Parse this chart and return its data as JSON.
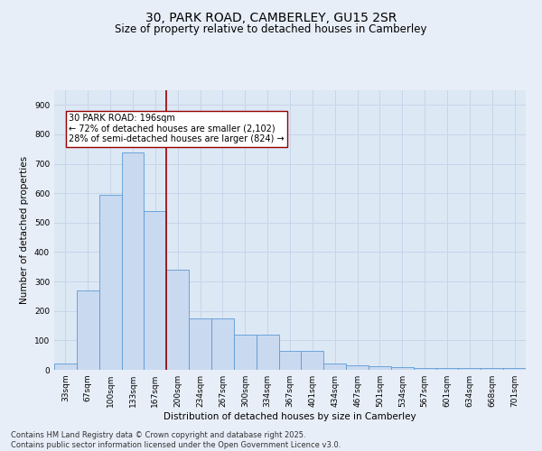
{
  "title": "30, PARK ROAD, CAMBERLEY, GU15 2SR",
  "subtitle": "Size of property relative to detached houses in Camberley",
  "xlabel": "Distribution of detached houses by size in Camberley",
  "ylabel": "Number of detached properties",
  "categories": [
    "33sqm",
    "67sqm",
    "100sqm",
    "133sqm",
    "167sqm",
    "200sqm",
    "234sqm",
    "267sqm",
    "300sqm",
    "334sqm",
    "367sqm",
    "401sqm",
    "434sqm",
    "467sqm",
    "501sqm",
    "534sqm",
    "567sqm",
    "601sqm",
    "634sqm",
    "668sqm",
    "701sqm"
  ],
  "values": [
    20,
    270,
    595,
    740,
    540,
    340,
    175,
    175,
    120,
    120,
    65,
    65,
    20,
    15,
    12,
    10,
    5,
    5,
    5,
    5,
    5
  ],
  "bar_color": "#c9d9f0",
  "bar_edge_color": "#5b9bd5",
  "grid_color": "#c8d4e8",
  "background_color": "#dde8f5",
  "fig_background_color": "#e8eef8",
  "vline_color": "#990000",
  "vline_x": 4.5,
  "annotation_text": "30 PARK ROAD: 196sqm\n← 72% of detached houses are smaller (2,102)\n28% of semi-detached houses are larger (824) →",
  "annotation_box_color": "#ffffff",
  "annotation_box_edge": "#990000",
  "footnote": "Contains HM Land Registry data © Crown copyright and database right 2025.\nContains public sector information licensed under the Open Government Licence v3.0.",
  "ylim": [
    0,
    950
  ],
  "yticks": [
    0,
    100,
    200,
    300,
    400,
    500,
    600,
    700,
    800,
    900
  ],
  "title_fontsize": 10,
  "subtitle_fontsize": 8.5,
  "axis_label_fontsize": 7.5,
  "tick_fontsize": 6.5,
  "annotation_fontsize": 7,
  "footnote_fontsize": 6
}
